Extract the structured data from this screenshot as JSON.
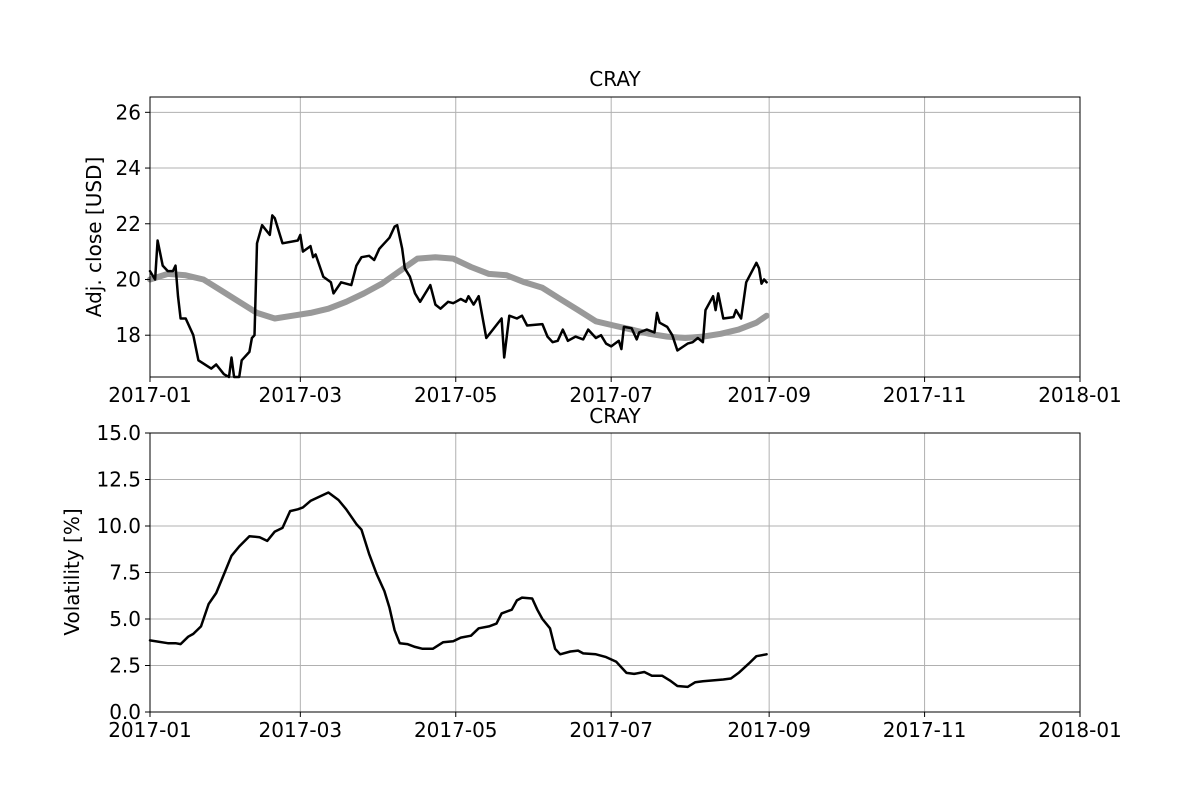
{
  "chart_data": [
    {
      "type": "line",
      "title": "CRAY",
      "xlabel": "",
      "ylabel": "Adj. close [USD]",
      "xlim": [
        "2017-01-01",
        "2018-01-01"
      ],
      "ylim": [
        16.5,
        26.55
      ],
      "grid": true,
      "x_ticks": [
        "2017-01",
        "2017-03",
        "2017-05",
        "2017-07",
        "2017-09",
        "2017-11",
        "2018-01"
      ],
      "y_ticks": [
        18,
        20,
        22,
        24,
        26
      ],
      "series": [
        {
          "color": "#000000",
          "points": [
            [
              "2017-01-01",
              20.3
            ],
            [
              "2017-01-03",
              20.0
            ],
            [
              "2017-01-04",
              21.4
            ],
            [
              "2017-01-06",
              20.5
            ],
            [
              "2017-01-08",
              20.3
            ],
            [
              "2017-01-10",
              20.3
            ],
            [
              "2017-01-11",
              20.5
            ],
            [
              "2017-01-12",
              19.4
            ],
            [
              "2017-01-13",
              18.6
            ],
            [
              "2017-01-15",
              18.6
            ],
            [
              "2017-01-18",
              18.0
            ],
            [
              "2017-01-20",
              17.1
            ],
            [
              "2017-01-25",
              16.8
            ],
            [
              "2017-01-27",
              16.95
            ],
            [
              "2017-01-30",
              16.6
            ],
            [
              "2017-02-01",
              16.5
            ],
            [
              "2017-02-02",
              17.2
            ],
            [
              "2017-02-03",
              16.5
            ],
            [
              "2017-02-05",
              16.5
            ],
            [
              "2017-02-06",
              17.1
            ],
            [
              "2017-02-09",
              17.4
            ],
            [
              "2017-02-10",
              17.9
            ],
            [
              "2017-02-11",
              18.0
            ],
            [
              "2017-02-12",
              21.3
            ],
            [
              "2017-02-14",
              21.95
            ],
            [
              "2017-02-17",
              21.6
            ],
            [
              "2017-02-18",
              22.3
            ],
            [
              "2017-02-19",
              22.2
            ],
            [
              "2017-02-22",
              21.3
            ],
            [
              "2017-02-28",
              21.4
            ],
            [
              "2017-03-01",
              21.6
            ],
            [
              "2017-03-02",
              21.0
            ],
            [
              "2017-03-05",
              21.2
            ],
            [
              "2017-03-06",
              20.8
            ],
            [
              "2017-03-07",
              20.9
            ],
            [
              "2017-03-10",
              20.1
            ],
            [
              "2017-03-13",
              19.9
            ],
            [
              "2017-03-14",
              19.5
            ],
            [
              "2017-03-17",
              19.9
            ],
            [
              "2017-03-21",
              19.8
            ],
            [
              "2017-03-23",
              20.5
            ],
            [
              "2017-03-25",
              20.8
            ],
            [
              "2017-03-28",
              20.85
            ],
            [
              "2017-03-30",
              20.7
            ],
            [
              "2017-04-01",
              21.1
            ],
            [
              "2017-04-05",
              21.5
            ],
            [
              "2017-04-07",
              21.9
            ],
            [
              "2017-04-08",
              21.95
            ],
            [
              "2017-04-10",
              21.1
            ],
            [
              "2017-04-11",
              20.4
            ],
            [
              "2017-04-13",
              20.1
            ],
            [
              "2017-04-15",
              19.5
            ],
            [
              "2017-04-17",
              19.2
            ],
            [
              "2017-04-21",
              19.8
            ],
            [
              "2017-04-23",
              19.1
            ],
            [
              "2017-04-25",
              18.95
            ],
            [
              "2017-04-28",
              19.2
            ],
            [
              "2017-04-30",
              19.15
            ],
            [
              "2017-05-01",
              19.2
            ],
            [
              "2017-05-03",
              19.3
            ],
            [
              "2017-05-05",
              19.2
            ],
            [
              "2017-05-06",
              19.4
            ],
            [
              "2017-05-08",
              19.1
            ],
            [
              "2017-05-10",
              19.4
            ],
            [
              "2017-05-13",
              17.9
            ],
            [
              "2017-05-19",
              18.6
            ],
            [
              "2017-05-20",
              17.2
            ],
            [
              "2017-05-22",
              18.7
            ],
            [
              "2017-05-25",
              18.6
            ],
            [
              "2017-05-27",
              18.7
            ],
            [
              "2017-05-29",
              18.35
            ],
            [
              "2017-06-04",
              18.4
            ],
            [
              "2017-06-06",
              17.95
            ],
            [
              "2017-06-08",
              17.75
            ],
            [
              "2017-06-10",
              17.8
            ],
            [
              "2017-06-12",
              18.2
            ],
            [
              "2017-06-14",
              17.8
            ],
            [
              "2017-06-17",
              17.95
            ],
            [
              "2017-06-20",
              17.85
            ],
            [
              "2017-06-22",
              18.2
            ],
            [
              "2017-06-25",
              17.9
            ],
            [
              "2017-06-27",
              18.0
            ],
            [
              "2017-06-29",
              17.7
            ],
            [
              "2017-07-01",
              17.6
            ],
            [
              "2017-07-04",
              17.8
            ],
            [
              "2017-07-05",
              17.5
            ],
            [
              "2017-07-06",
              18.3
            ],
            [
              "2017-07-09",
              18.25
            ],
            [
              "2017-07-11",
              17.85
            ],
            [
              "2017-07-12",
              18.1
            ],
            [
              "2017-07-15",
              18.2
            ],
            [
              "2017-07-18",
              18.1
            ],
            [
              "2017-07-19",
              18.8
            ],
            [
              "2017-07-20",
              18.45
            ],
            [
              "2017-07-23",
              18.3
            ],
            [
              "2017-07-25",
              18.0
            ],
            [
              "2017-07-27",
              17.45
            ],
            [
              "2017-07-31",
              17.7
            ],
            [
              "2017-08-02",
              17.75
            ],
            [
              "2017-08-04",
              17.9
            ],
            [
              "2017-08-06",
              17.75
            ],
            [
              "2017-08-07",
              18.9
            ],
            [
              "2017-08-10",
              19.4
            ],
            [
              "2017-08-11",
              18.9
            ],
            [
              "2017-08-12",
              19.5
            ],
            [
              "2017-08-14",
              18.6
            ],
            [
              "2017-08-18",
              18.65
            ],
            [
              "2017-08-19",
              18.9
            ],
            [
              "2017-08-21",
              18.6
            ],
            [
              "2017-08-23",
              19.9
            ],
            [
              "2017-08-27",
              20.6
            ],
            [
              "2017-08-28",
              20.4
            ],
            [
              "2017-08-29",
              19.85
            ],
            [
              "2017-08-30",
              20.0
            ],
            [
              "2017-08-31",
              19.9
            ]
          ]
        },
        {
          "color": "#999999",
          "points": [
            [
              "2017-01-01",
              20.0
            ],
            [
              "2017-01-08",
              20.2
            ],
            [
              "2017-01-15",
              20.15
            ],
            [
              "2017-01-22",
              20.0
            ],
            [
              "2017-01-29",
              19.6
            ],
            [
              "2017-02-05",
              19.2
            ],
            [
              "2017-02-12",
              18.8
            ],
            [
              "2017-02-19",
              18.6
            ],
            [
              "2017-02-26",
              18.7
            ],
            [
              "2017-03-05",
              18.8
            ],
            [
              "2017-03-12",
              18.95
            ],
            [
              "2017-03-19",
              19.2
            ],
            [
              "2017-03-26",
              19.5
            ],
            [
              "2017-04-02",
              19.85
            ],
            [
              "2017-04-09",
              20.3
            ],
            [
              "2017-04-16",
              20.75
            ],
            [
              "2017-04-23",
              20.8
            ],
            [
              "2017-04-30",
              20.75
            ],
            [
              "2017-05-07",
              20.45
            ],
            [
              "2017-05-14",
              20.2
            ],
            [
              "2017-05-21",
              20.15
            ],
            [
              "2017-05-28",
              19.9
            ],
            [
              "2017-06-04",
              19.7
            ],
            [
              "2017-06-11",
              19.3
            ],
            [
              "2017-06-18",
              18.9
            ],
            [
              "2017-06-25",
              18.5
            ],
            [
              "2017-07-02",
              18.35
            ],
            [
              "2017-07-09",
              18.2
            ],
            [
              "2017-07-16",
              18.05
            ],
            [
              "2017-07-23",
              17.95
            ],
            [
              "2017-07-30",
              17.9
            ],
            [
              "2017-08-06",
              17.95
            ],
            [
              "2017-08-13",
              18.05
            ],
            [
              "2017-08-20",
              18.2
            ],
            [
              "2017-08-27",
              18.45
            ],
            [
              "2017-08-31",
              18.7
            ]
          ]
        }
      ]
    },
    {
      "type": "line",
      "title": "CRAY",
      "xlabel": "",
      "ylabel": "Volatility [%]",
      "xlim": [
        "2017-01-01",
        "2018-01-01"
      ],
      "ylim": [
        0,
        15
      ],
      "grid": true,
      "x_ticks": [
        "2017-01",
        "2017-03",
        "2017-05",
        "2017-07",
        "2017-09",
        "2017-11",
        "2018-01"
      ],
      "y_ticks": [
        "0.0",
        "2.5",
        "5.0",
        "7.5",
        "10.0",
        "12.5",
        "15.0"
      ],
      "series": [
        {
          "color": "#000000",
          "points": [
            [
              "2017-01-01",
              3.85
            ],
            [
              "2017-01-08",
              3.7
            ],
            [
              "2017-01-11",
              3.7
            ],
            [
              "2017-01-13",
              3.65
            ],
            [
              "2017-01-16",
              4.05
            ],
            [
              "2017-01-18",
              4.2
            ],
            [
              "2017-01-21",
              4.6
            ],
            [
              "2017-01-24",
              5.8
            ],
            [
              "2017-01-27",
              6.4
            ],
            [
              "2017-01-30",
              7.4
            ],
            [
              "2017-02-02",
              8.4
            ],
            [
              "2017-02-05",
              8.9
            ],
            [
              "2017-02-09",
              9.45
            ],
            [
              "2017-02-13",
              9.4
            ],
            [
              "2017-02-16",
              9.2
            ],
            [
              "2017-02-19",
              9.7
            ],
            [
              "2017-02-22",
              9.9
            ],
            [
              "2017-02-25",
              10.8
            ],
            [
              "2017-02-28",
              10.9
            ],
            [
              "2017-03-02",
              11.0
            ],
            [
              "2017-03-05",
              11.35
            ],
            [
              "2017-03-08",
              11.55
            ],
            [
              "2017-03-12",
              11.8
            ],
            [
              "2017-03-16",
              11.4
            ],
            [
              "2017-03-19",
              10.9
            ],
            [
              "2017-03-23",
              10.1
            ],
            [
              "2017-03-25",
              9.8
            ],
            [
              "2017-03-28",
              8.5
            ],
            [
              "2017-03-31",
              7.4
            ],
            [
              "2017-04-03",
              6.5
            ],
            [
              "2017-04-05",
              5.6
            ],
            [
              "2017-04-07",
              4.4
            ],
            [
              "2017-04-09",
              3.7
            ],
            [
              "2017-04-12",
              3.65
            ],
            [
              "2017-04-15",
              3.5
            ],
            [
              "2017-04-18",
              3.4
            ],
            [
              "2017-04-22",
              3.4
            ],
            [
              "2017-04-26",
              3.75
            ],
            [
              "2017-04-30",
              3.8
            ],
            [
              "2017-05-03",
              4.0
            ],
            [
              "2017-05-07",
              4.1
            ],
            [
              "2017-05-10",
              4.5
            ],
            [
              "2017-05-14",
              4.6
            ],
            [
              "2017-05-17",
              4.75
            ],
            [
              "2017-05-19",
              5.3
            ],
            [
              "2017-05-23",
              5.5
            ],
            [
              "2017-05-25",
              6.0
            ],
            [
              "2017-05-27",
              6.15
            ],
            [
              "2017-05-31",
              6.1
            ],
            [
              "2017-06-02",
              5.5
            ],
            [
              "2017-06-04",
              5.0
            ],
            [
              "2017-06-07",
              4.5
            ],
            [
              "2017-06-09",
              3.4
            ],
            [
              "2017-06-11",
              3.1
            ],
            [
              "2017-06-15",
              3.25
            ],
            [
              "2017-06-18",
              3.3
            ],
            [
              "2017-06-20",
              3.15
            ],
            [
              "2017-06-25",
              3.1
            ],
            [
              "2017-06-29",
              2.95
            ],
            [
              "2017-07-03",
              2.7
            ],
            [
              "2017-07-05",
              2.4
            ],
            [
              "2017-07-07",
              2.1
            ],
            [
              "2017-07-10",
              2.05
            ],
            [
              "2017-07-14",
              2.15
            ],
            [
              "2017-07-17",
              1.95
            ],
            [
              "2017-07-21",
              1.95
            ],
            [
              "2017-07-24",
              1.7
            ],
            [
              "2017-07-27",
              1.4
            ],
            [
              "2017-07-31",
              1.35
            ],
            [
              "2017-08-03",
              1.6
            ],
            [
              "2017-08-06",
              1.65
            ],
            [
              "2017-08-10",
              1.7
            ],
            [
              "2017-08-14",
              1.75
            ],
            [
              "2017-08-17",
              1.8
            ],
            [
              "2017-08-20",
              2.1
            ],
            [
              "2017-08-24",
              2.6
            ],
            [
              "2017-08-27",
              3.0
            ],
            [
              "2017-08-31",
              3.1
            ]
          ]
        }
      ]
    }
  ]
}
